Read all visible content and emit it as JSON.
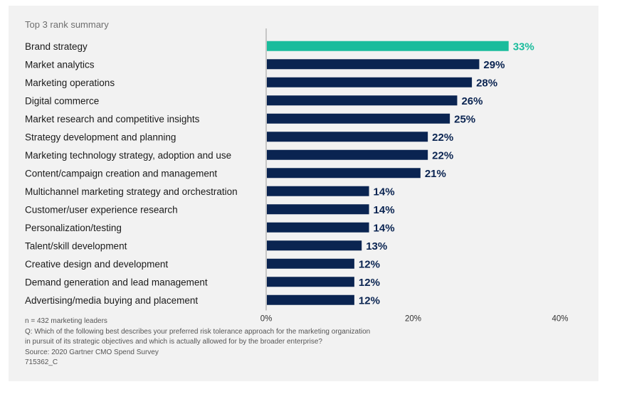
{
  "colors": {
    "highlight": "#1abc9c",
    "bar": "#0a2451",
    "axis": "#999999"
  },
  "chart_data": {
    "type": "bar",
    "orientation": "horizontal",
    "title": "Top 3 rank summary",
    "categories": [
      "Brand strategy",
      "Market analytics",
      "Marketing operations",
      "Digital commerce",
      "Market research and competitive insights",
      "Strategy development and planning",
      "Marketing technology strategy, adoption and use",
      "Content/campaign creation and management",
      "Multichannel marketing strategy and orchestration",
      "Customer/user experience research",
      "Personalization/testing",
      "Talent/skill development",
      "Creative design and development",
      "Demand generation and lead management",
      "Advertising/media buying and placement"
    ],
    "values": [
      33,
      29,
      28,
      26,
      25,
      22,
      22,
      21,
      14,
      14,
      14,
      13,
      12,
      12,
      12
    ],
    "value_labels": [
      "33%",
      "29%",
      "28%",
      "26%",
      "25%",
      "22%",
      "22%",
      "21%",
      "14%",
      "14%",
      "14%",
      "13%",
      "12%",
      "12%",
      "12%"
    ],
    "highlight_index": 0,
    "xlim": [
      0,
      40
    ],
    "xticks": [
      0,
      20,
      40
    ],
    "xtick_labels": [
      "0%",
      "20%",
      "40%"
    ],
    "xlabel": "",
    "ylabel": "",
    "grid": false
  },
  "footnotes": [
    "n = 432 marketing leaders",
    "Q: Which of the following best describes your preferred risk tolerance approach for the marketing organization",
    "in pursuit of its strategic objectives and which is actually allowed for by the broader enterprise?",
    "Source: 2020 Gartner CMO Spend Survey",
    "715362_C"
  ]
}
